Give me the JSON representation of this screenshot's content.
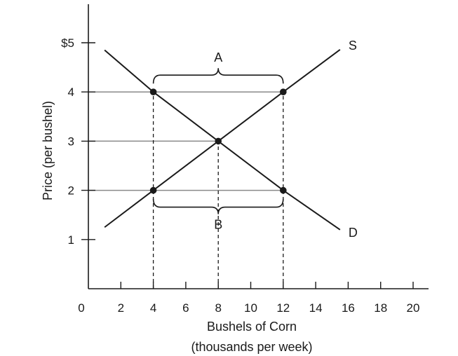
{
  "chart_data": {
    "type": "line",
    "title": "",
    "xlabel": "Bushels of Corn",
    "xlabel_sub": "(thousands per week)",
    "ylabel": "Price (per bushel)",
    "xlim": [
      0,
      20
    ],
    "ylim": [
      0,
      5
    ],
    "x_ticks": [
      {
        "value": 2,
        "label": "2"
      },
      {
        "value": 4,
        "label": "4"
      },
      {
        "value": 6,
        "label": "6"
      },
      {
        "value": 8,
        "label": "8"
      },
      {
        "value": 10,
        "label": "10"
      },
      {
        "value": 12,
        "label": "12"
      },
      {
        "value": 14,
        "label": "14"
      },
      {
        "value": 16,
        "label": "16"
      },
      {
        "value": 18,
        "label": "18"
      },
      {
        "value": 20,
        "label": "20"
      }
    ],
    "y_ticks": [
      {
        "value": 1,
        "label": "1"
      },
      {
        "value": 2,
        "label": "2"
      },
      {
        "value": 3,
        "label": "3"
      },
      {
        "value": 4,
        "label": "4"
      },
      {
        "value": 5,
        "label": "$5"
      }
    ],
    "origin_label": "0",
    "grid": false,
    "series": [
      {
        "name": "S",
        "x": [
          1,
          4,
          8,
          12,
          15.5
        ],
        "y": [
          1.25,
          2,
          3,
          4,
          4.86
        ],
        "color": "#1a1a1a"
      },
      {
        "name": "D",
        "x": [
          1,
          4,
          8,
          12,
          15.5
        ],
        "y": [
          4.85,
          4,
          3,
          2,
          1.2
        ],
        "color": "#1a1a1a"
      }
    ],
    "points": [
      {
        "x": 4,
        "y": 4
      },
      {
        "x": 12,
        "y": 4
      },
      {
        "x": 8,
        "y": 3
      },
      {
        "x": 4,
        "y": 2
      },
      {
        "x": 12,
        "y": 2
      }
    ],
    "reference_lines": [
      {
        "orientation": "horizontal",
        "y": 4,
        "x_from": 0,
        "x_to": 12,
        "style": "solid"
      },
      {
        "orientation": "horizontal",
        "y": 3,
        "x_from": 0,
        "x_to": 8,
        "style": "solid"
      },
      {
        "orientation": "horizontal",
        "y": 2,
        "x_from": 0,
        "x_to": 12,
        "style": "solid"
      },
      {
        "orientation": "vertical",
        "x": 4,
        "y_from": 0,
        "y_to": 4,
        "style": "dashed"
      },
      {
        "orientation": "vertical",
        "x": 8,
        "y_from": 0,
        "y_to": 3,
        "style": "dashed"
      },
      {
        "orientation": "vertical",
        "x": 12,
        "y_from": 0,
        "y_to": 4,
        "style": "dashed"
      }
    ],
    "brackets": [
      {
        "label": "A",
        "x_from": 4,
        "x_to": 12,
        "y": 4,
        "position": "above"
      },
      {
        "label": "B",
        "x_from": 4,
        "x_to": 12,
        "y": 2,
        "position": "below"
      }
    ]
  }
}
